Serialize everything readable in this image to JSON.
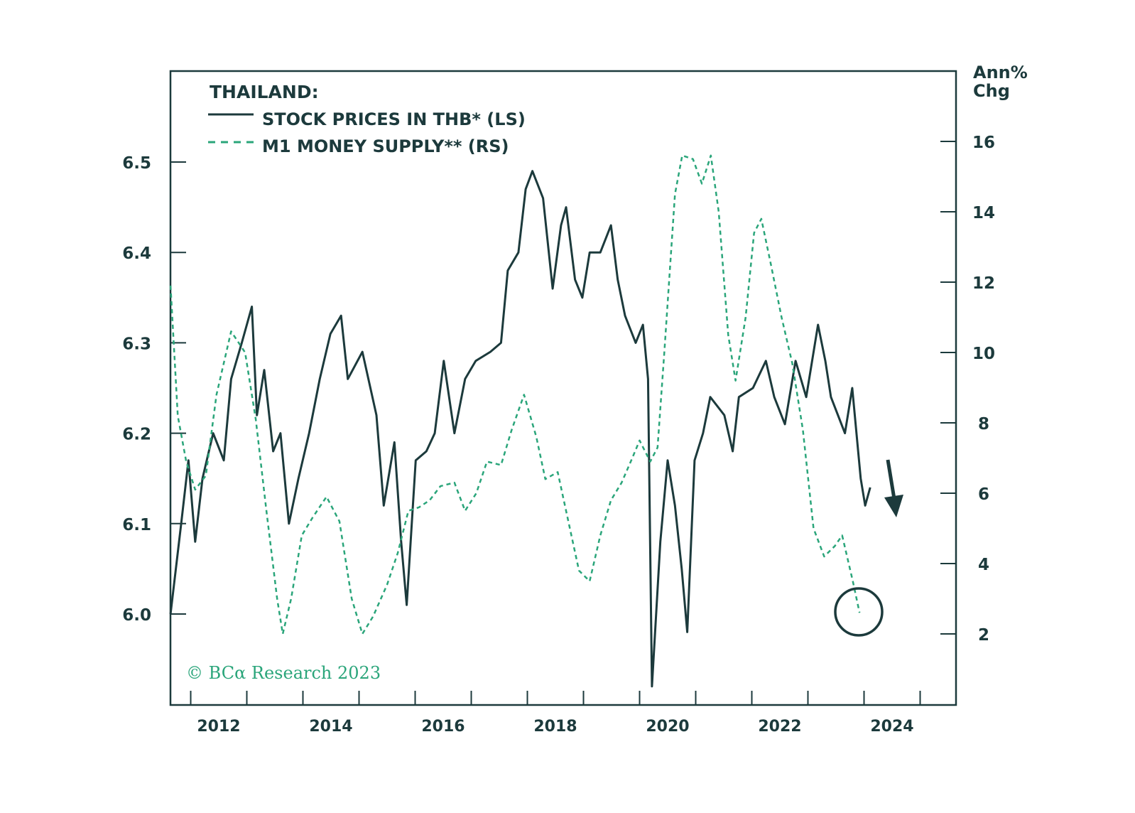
{
  "chart_data": {
    "type": "line",
    "title": "THAILAND:",
    "xlabel": "",
    "ylabel_left": "",
    "ylabel_right": "Ann% Chg",
    "ylabel_right_lines": [
      "Ann%",
      "Chg"
    ],
    "xlim": [
      2011.64,
      2025.64
    ],
    "ylim_left": [
      5.905,
      6.6
    ],
    "ylim_right": [
      0,
      18
    ],
    "x_ticks": [
      2012,
      2013,
      2014,
      2015,
      2016,
      2017,
      2018,
      2019,
      2020,
      2021,
      2022,
      2023,
      2024,
      2025
    ],
    "x_tick_labels": [
      "2012",
      "2014",
      "2016",
      "2018",
      "2020",
      "2022",
      "2024"
    ],
    "y_left_ticks": [
      "6.0",
      "6.1",
      "6.2",
      "6.3",
      "6.4",
      "6.5"
    ],
    "y_right_ticks": [
      "2",
      "4",
      "6",
      "8",
      "10",
      "12",
      "14",
      "16"
    ],
    "grid": false,
    "legend_position": "top-left",
    "series": [
      {
        "name": "STOCK PRICES IN THB* (LS)",
        "axis": "left",
        "color": "#1c3a3c",
        "style": "solid",
        "x": [
          2011.64,
          2011.83,
          2011.96,
          2012.08,
          2012.21,
          2012.4,
          2012.59,
          2012.72,
          2012.91,
          2013.09,
          2013.18,
          2013.31,
          2013.47,
          2013.6,
          2013.75,
          2013.92,
          2014.11,
          2014.3,
          2014.49,
          2014.68,
          2014.8,
          2015.06,
          2015.31,
          2015.44,
          2015.63,
          2015.75,
          2015.85,
          2016.01,
          2016.2,
          2016.35,
          2016.51,
          2016.7,
          2016.89,
          2017.08,
          2017.34,
          2017.53,
          2017.65,
          2017.84,
          2017.97,
          2018.09,
          2018.28,
          2018.45,
          2018.6,
          2018.69,
          2018.85,
          2018.98,
          2019.11,
          2019.3,
          2019.49,
          2019.61,
          2019.74,
          2019.93,
          2020.06,
          2020.15,
          2020.22,
          2020.37,
          2020.5,
          2020.63,
          2020.75,
          2020.85,
          2020.98,
          2021.13,
          2021.26,
          2021.51,
          2021.66,
          2021.77,
          2022.02,
          2022.25,
          2022.4,
          2022.59,
          2022.78,
          2022.97,
          2023.18,
          2023.31,
          2023.41,
          2023.66,
          2023.79,
          2023.94,
          2024.02,
          2024.11
        ],
        "values": [
          6.0,
          6.1,
          6.17,
          6.08,
          6.15,
          6.2,
          6.17,
          6.26,
          6.3,
          6.34,
          6.22,
          6.27,
          6.18,
          6.2,
          6.1,
          6.15,
          6.2,
          6.26,
          6.31,
          6.33,
          6.26,
          6.29,
          6.22,
          6.12,
          6.19,
          6.08,
          6.01,
          6.17,
          6.18,
          6.2,
          6.28,
          6.2,
          6.26,
          6.28,
          6.29,
          6.3,
          6.38,
          6.4,
          6.47,
          6.49,
          6.46,
          6.36,
          6.43,
          6.45,
          6.37,
          6.35,
          6.4,
          6.4,
          6.43,
          6.37,
          6.33,
          6.3,
          6.32,
          6.26,
          5.92,
          6.08,
          6.17,
          6.12,
          6.05,
          5.98,
          6.17,
          6.2,
          6.24,
          6.22,
          6.18,
          6.24,
          6.25,
          6.28,
          6.24,
          6.21,
          6.28,
          6.24,
          6.32,
          6.28,
          6.24,
          6.2,
          6.25,
          6.15,
          6.12,
          6.14
        ]
      },
      {
        "name": "M1 MONEY SUPPLY** (RS)",
        "axis": "right",
        "color": "#2aa57a",
        "style": "dashed",
        "x": [
          2011.64,
          2011.77,
          2011.92,
          2012.08,
          2012.27,
          2012.46,
          2012.72,
          2012.97,
          2013.16,
          2013.35,
          2013.54,
          2013.64,
          2013.79,
          2013.98,
          2014.17,
          2014.42,
          2014.65,
          2014.87,
          2015.06,
          2015.25,
          2015.5,
          2015.69,
          2015.88,
          2016.07,
          2016.26,
          2016.45,
          2016.7,
          2016.89,
          2017.09,
          2017.28,
          2017.53,
          2017.72,
          2017.94,
          2018.16,
          2018.32,
          2018.54,
          2018.73,
          2018.92,
          2019.11,
          2019.3,
          2019.49,
          2019.68,
          2019.87,
          2020.0,
          2020.19,
          2020.32,
          2020.44,
          2020.63,
          2020.76,
          2020.95,
          2021.11,
          2021.27,
          2021.41,
          2021.58,
          2021.71,
          2021.89,
          2022.04,
          2022.17,
          2022.34,
          2022.53,
          2022.72,
          2022.91,
          2023.1,
          2023.29,
          2023.48,
          2023.61,
          2023.8,
          2023.92
        ],
        "values": [
          11.9,
          8.2,
          6.9,
          6.1,
          6.5,
          8.8,
          10.6,
          10.0,
          8.1,
          5.5,
          3.0,
          2.0,
          3.0,
          4.8,
          5.3,
          5.9,
          5.2,
          3.0,
          2.0,
          2.5,
          3.4,
          4.3,
          5.5,
          5.6,
          5.8,
          6.2,
          6.3,
          5.5,
          6.0,
          6.9,
          6.8,
          7.8,
          8.8,
          7.6,
          6.4,
          6.6,
          5.2,
          3.8,
          3.5,
          4.8,
          5.8,
          6.3,
          7.0,
          7.5,
          6.9,
          7.3,
          10.0,
          14.5,
          15.6,
          15.5,
          14.8,
          15.6,
          14.0,
          10.5,
          9.2,
          11.0,
          13.4,
          13.8,
          12.5,
          11.0,
          9.7,
          7.8,
          5.0,
          4.2,
          4.5,
          4.8,
          3.5,
          2.6
        ]
      }
    ],
    "annotations": [
      "down-arrow after stock series",
      "circle around latest M1 reading"
    ],
    "copyright": "© BCα Research 2023"
  }
}
